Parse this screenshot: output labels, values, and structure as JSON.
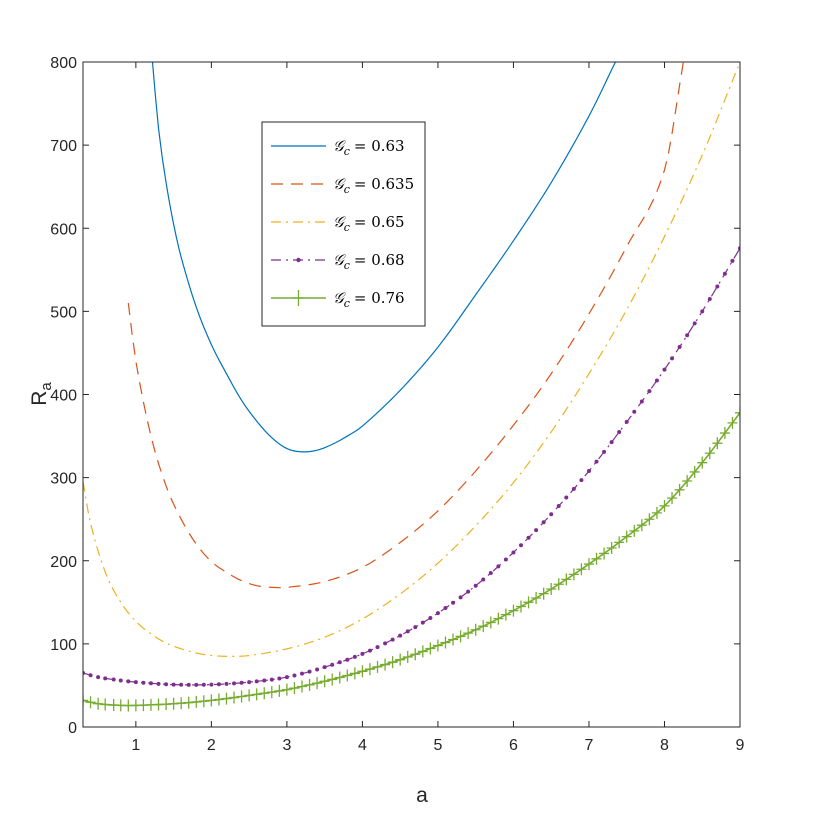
{
  "chart_data": {
    "type": "line",
    "title": "",
    "xlabel": "a",
    "ylabel": "R",
    "ylabel_subscript": "a",
    "xlim": [
      0.3,
      9
    ],
    "ylim": [
      0,
      800
    ],
    "x_ticks": [
      1,
      2,
      3,
      4,
      5,
      6,
      7,
      8,
      9
    ],
    "x_tick_labels": [
      "1",
      "2",
      "3",
      "4",
      "5",
      "6",
      "7",
      "8",
      "9"
    ],
    "y_ticks": [
      0,
      100,
      200,
      300,
      400,
      500,
      600,
      700,
      800
    ],
    "y_tick_labels": [
      "0",
      "100",
      "200",
      "300",
      "400",
      "500",
      "600",
      "700",
      "800"
    ],
    "grid": false,
    "legend_position": "upper-center",
    "series": [
      {
        "name": "𝒢c = 0.63",
        "legend_symbol": "𝒢",
        "legend_subscript": "c",
        "legend_value": "= 0.63",
        "color": "#0072BD",
        "style": "solid",
        "marker": "none",
        "x": [
          1.22,
          1.3,
          1.4,
          1.5,
          1.6,
          1.8,
          2.0,
          2.2,
          2.4,
          2.6,
          2.8,
          3.0,
          3.2,
          3.4,
          3.6,
          3.8,
          4.0,
          4.5,
          5.0,
          5.5,
          6.0,
          6.5,
          7.0,
          7.35
        ],
        "y": [
          800,
          720,
          655,
          605,
          565,
          505,
          460,
          425,
          393,
          368,
          348,
          335,
          331,
          333,
          340,
          350,
          362,
          405,
          457,
          520,
          585,
          655,
          735,
          800
        ]
      },
      {
        "name": "𝒢c = 0.635",
        "legend_symbol": "𝒢",
        "legend_subscript": "c",
        "legend_value": "= 0.635",
        "color": "#D95319",
        "style": "dashed",
        "marker": "none",
        "x": [
          0.9,
          1.0,
          1.2,
          1.4,
          1.6,
          1.8,
          2.0,
          2.2,
          2.4,
          2.6,
          2.8,
          3.0,
          3.5,
          4.0,
          4.5,
          5.0,
          5.5,
          6.0,
          6.5,
          7.0,
          7.5,
          8.0,
          8.25
        ],
        "y": [
          510,
          440,
          350,
          290,
          250,
          220,
          199,
          186,
          176,
          170,
          168,
          168,
          175,
          192,
          222,
          260,
          308,
          363,
          425,
          497,
          578,
          670,
          800
        ]
      },
      {
        "name": "𝒢c = 0.65",
        "legend_symbol": "𝒢",
        "legend_subscript": "c",
        "legend_value": "= 0.65",
        "color": "#EDB120",
        "style": "dashdot",
        "marker": "none",
        "x": [
          0.3,
          0.4,
          0.6,
          0.8,
          1.0,
          1.2,
          1.4,
          1.6,
          1.8,
          2.0,
          2.25,
          2.5,
          3.0,
          3.5,
          4.0,
          4.5,
          5.0,
          5.5,
          6.0,
          6.5,
          7.0,
          7.5,
          8.0,
          8.5,
          9.0
        ],
        "y": [
          295,
          245,
          185,
          150,
          127,
          112,
          101,
          94,
          89,
          86,
          85,
          86,
          94,
          108,
          130,
          160,
          197,
          242,
          294,
          355,
          425,
          502,
          590,
          688,
          800
        ]
      },
      {
        "name": "𝒢c = 0.68",
        "legend_symbol": "𝒢",
        "legend_subscript": "c",
        "legend_value": "= 0.68",
        "color": "#7E2F8E",
        "style": "dashdot",
        "marker": "dot",
        "x": [
          0.3,
          0.5,
          0.8,
          1.0,
          1.5,
          2.0,
          2.5,
          3.0,
          3.5,
          4.0,
          4.5,
          5.0,
          5.5,
          6.0,
          6.5,
          7.0,
          7.5,
          8.0,
          8.5,
          9.0
        ],
        "y": [
          65,
          60,
          56,
          54,
          51,
          51,
          54,
          60,
          72,
          88,
          110,
          137,
          170,
          210,
          256,
          308,
          367,
          430,
          500,
          576
        ]
      },
      {
        "name": "𝒢c = 0.76",
        "legend_symbol": "𝒢",
        "legend_subscript": "c",
        "legend_value": "= 0.76",
        "color": "#77AC30",
        "style": "solid",
        "marker": "plus",
        "x": [
          0.3,
          0.5,
          0.8,
          1.0,
          1.5,
          2.0,
          2.5,
          3.0,
          3.5,
          4.0,
          4.5,
          5.0,
          5.5,
          6.0,
          6.5,
          7.0,
          7.5,
          8.0,
          8.5,
          9.0
        ],
        "y": [
          32,
          28,
          26,
          26,
          28,
          32,
          38,
          45,
          55,
          67,
          81,
          98,
          117,
          140,
          166,
          196,
          229,
          266,
          318,
          378
        ]
      }
    ]
  }
}
